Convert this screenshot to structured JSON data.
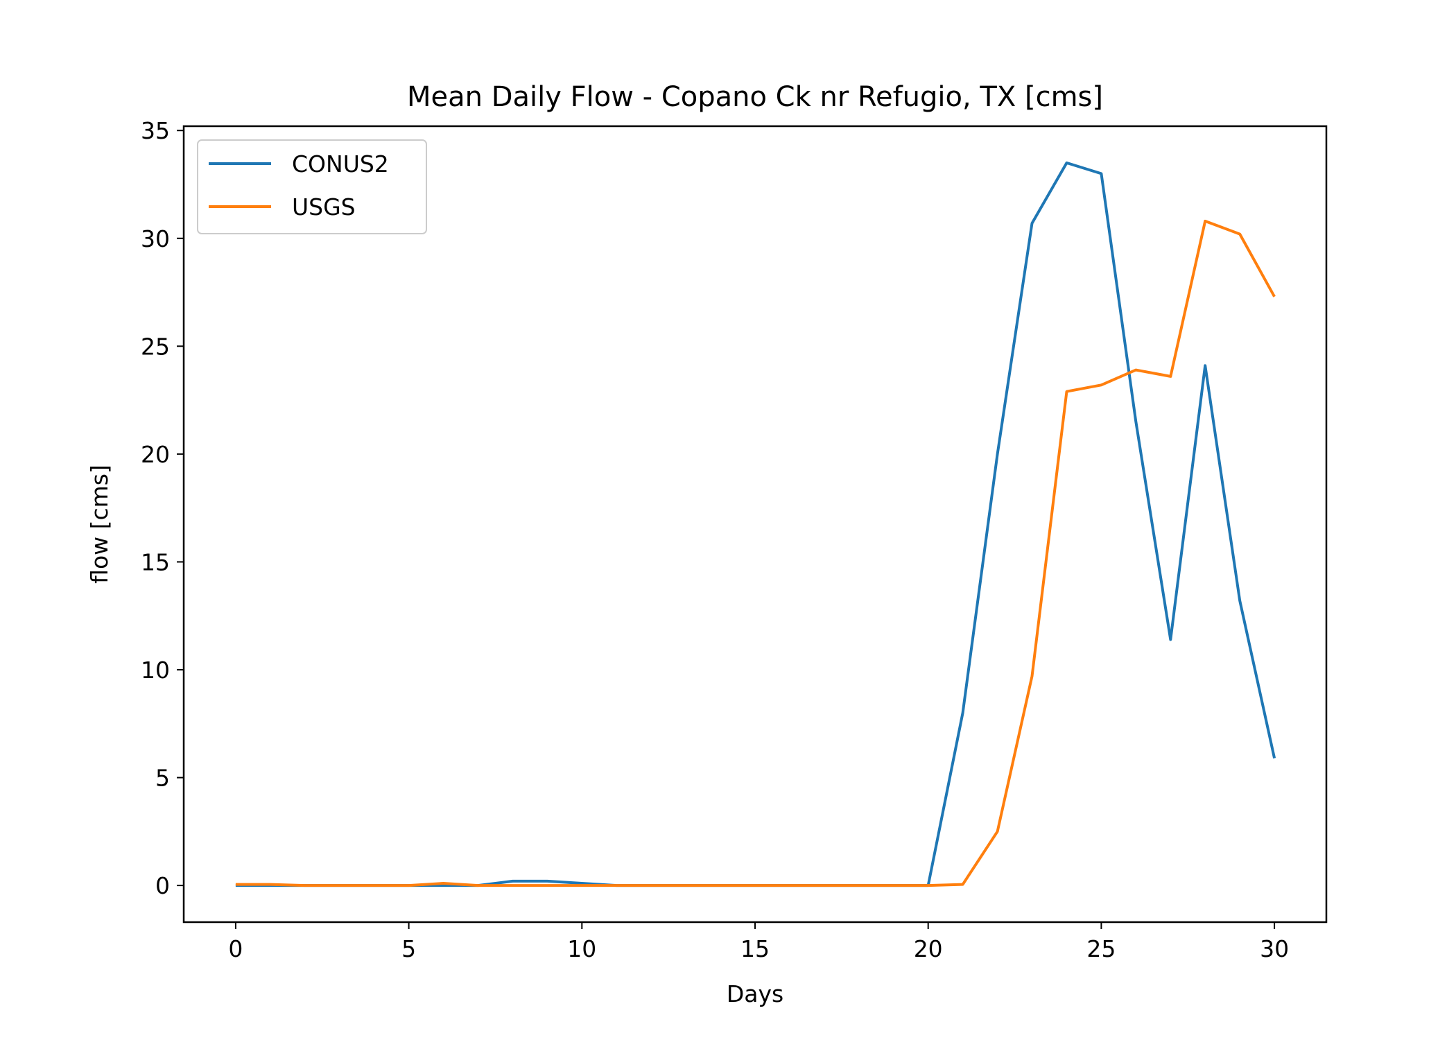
{
  "chart_data": {
    "type": "line",
    "title": "Mean Daily Flow - Copano Ck nr Refugio, TX [cms]",
    "xlabel": "Days",
    "ylabel": "flow [cms]",
    "xlim": [
      -1.5,
      31.5
    ],
    "ylim": [
      -1.7,
      35.2
    ],
    "xticks": [
      0,
      5,
      10,
      15,
      20,
      25,
      30
    ],
    "yticks": [
      0,
      5,
      10,
      15,
      20,
      25,
      30,
      35
    ],
    "grid": false,
    "legend": "top-left",
    "x": [
      0,
      1,
      2,
      3,
      4,
      5,
      6,
      7,
      8,
      9,
      10,
      11,
      12,
      13,
      14,
      15,
      16,
      17,
      18,
      19,
      20,
      21,
      22,
      23,
      24,
      25,
      26,
      27,
      28,
      29,
      30
    ],
    "series": [
      {
        "name": "CONUS2",
        "color": "#1f77b4",
        "values": [
          0,
          0,
          0,
          0,
          0,
          0,
          0,
          0,
          0.2,
          0.2,
          0.1,
          0,
          0,
          0,
          0,
          0,
          0,
          0,
          0,
          0,
          0,
          8.0,
          20.0,
          30.7,
          33.5,
          33.0,
          21.5,
          11.4,
          24.1,
          13.2,
          5.9
        ]
      },
      {
        "name": "USGS",
        "color": "#ff7f0e",
        "values": [
          0.05,
          0.05,
          0,
          0,
          0,
          0,
          0.1,
          0,
          0,
          0,
          0,
          0,
          0,
          0,
          0,
          0,
          0,
          0,
          0,
          0,
          0,
          0.05,
          2.5,
          9.7,
          22.9,
          23.2,
          23.9,
          23.6,
          30.8,
          30.2,
          27.3
        ]
      }
    ]
  }
}
